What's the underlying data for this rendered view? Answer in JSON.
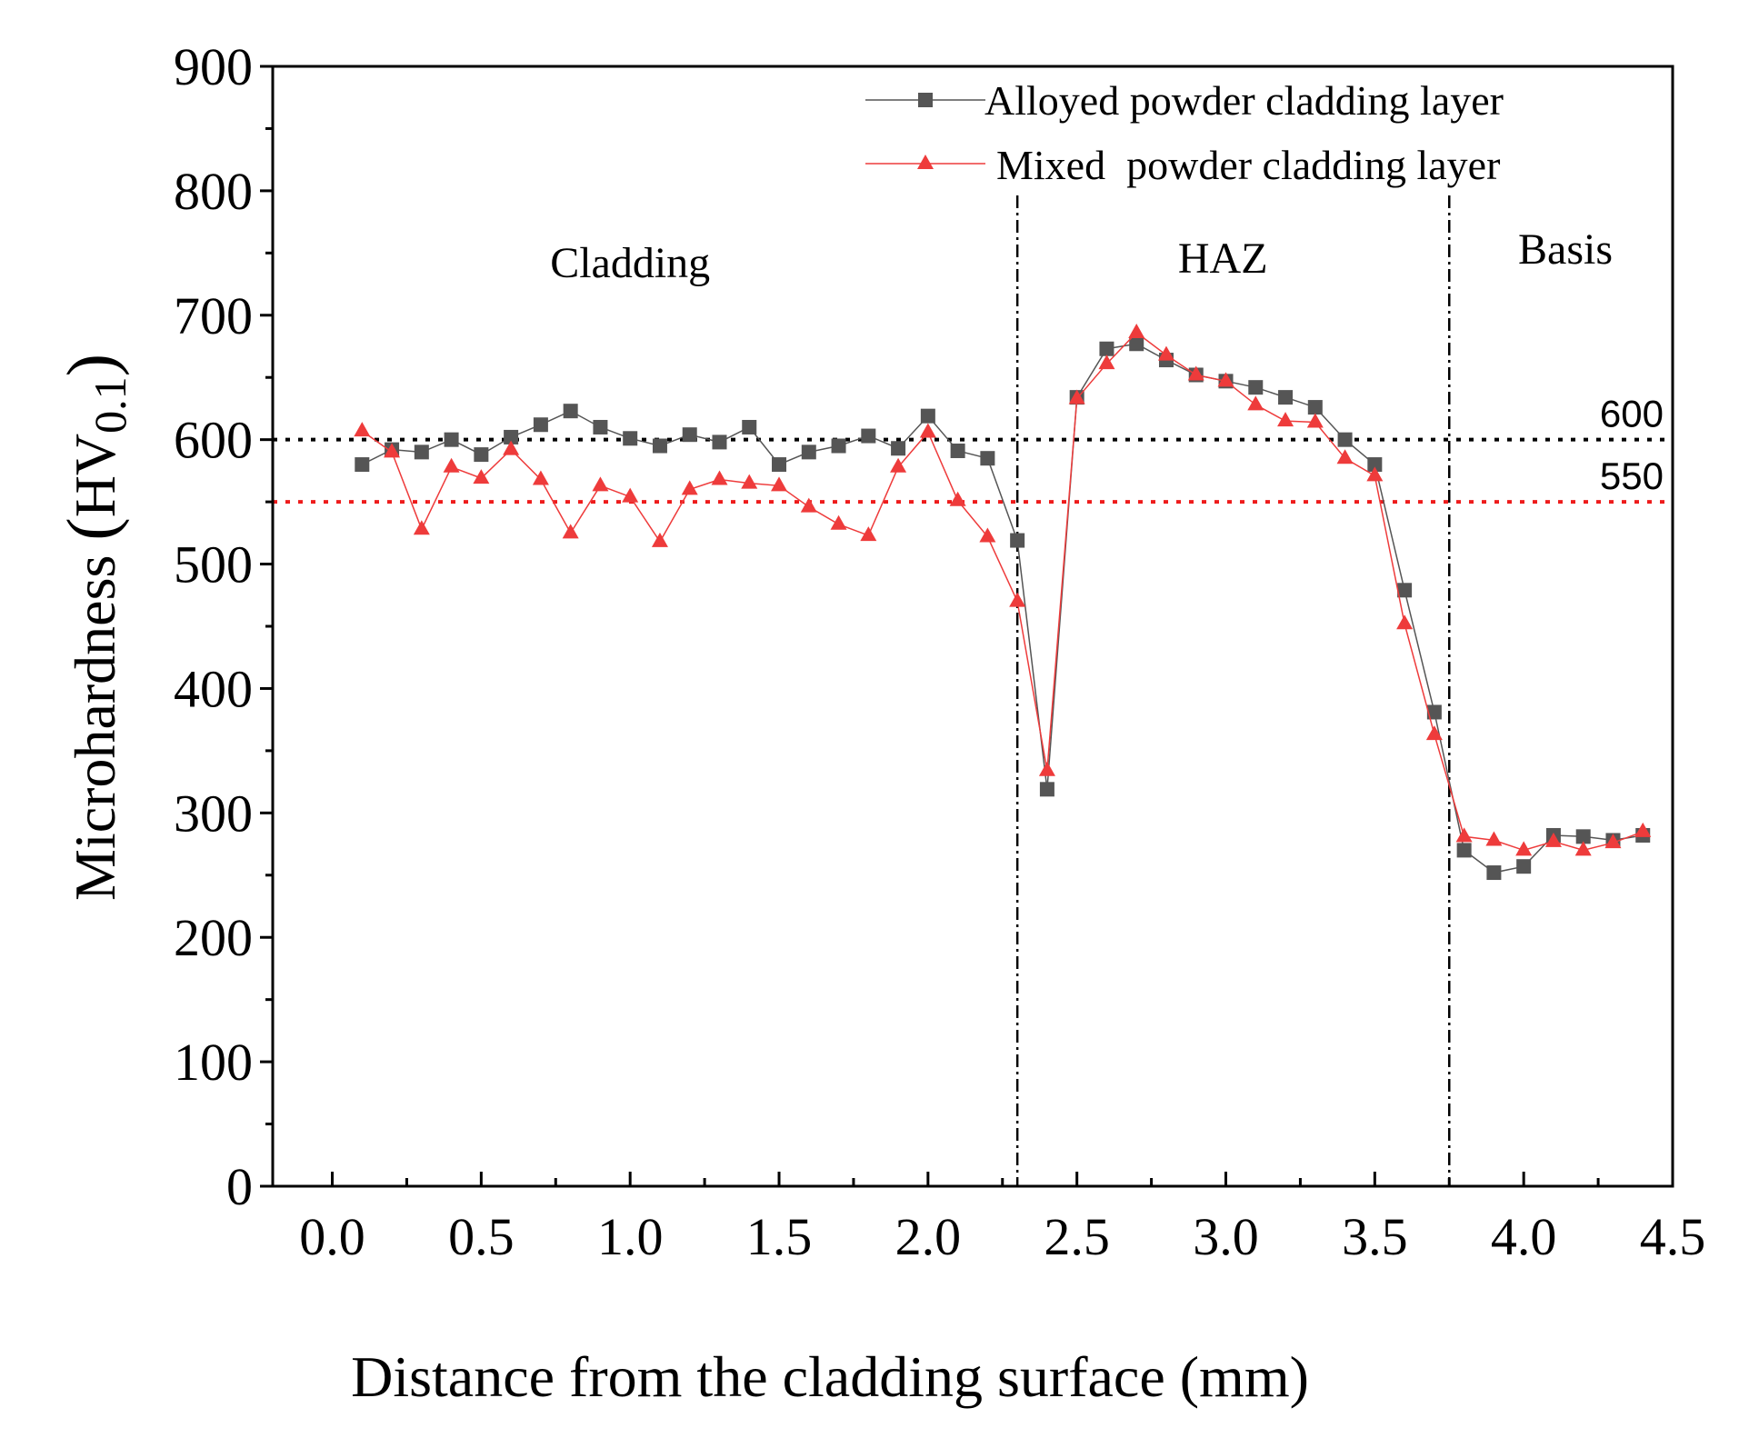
{
  "chart_data": {
    "type": "line",
    "xlabel": "Distance from the cladding surface (mm)",
    "ylabel": "Microhardness (HV0.1)",
    "ylabel_main": "Microhardness",
    "ylabel_paren_open": "(",
    "ylabel_hv": "HV",
    "ylabel_sub": "0.1",
    "ylabel_paren_close": ")",
    "xlim": [
      -0.2,
      4.5
    ],
    "ylim": [
      0,
      900
    ],
    "xticks": [
      0.0,
      0.5,
      1.0,
      1.5,
      2.0,
      2.5,
      3.0,
      3.5,
      4.0,
      4.5
    ],
    "xtick_labels": [
      "0.0",
      "0.5",
      "1.0",
      "1.5",
      "2.0",
      "2.5",
      "3.0",
      "3.5",
      "4.0",
      "4.5"
    ],
    "yticks": [
      0,
      100,
      200,
      300,
      400,
      500,
      600,
      700,
      800,
      900
    ],
    "ytick_labels": [
      "0",
      "100",
      "200",
      "300",
      "400",
      "500",
      "600",
      "700",
      "800",
      "900"
    ],
    "series": [
      {
        "name": "Alloyed powder cladding layer",
        "color": "#555555",
        "marker": "square",
        "x": [
          0.1,
          0.2,
          0.3,
          0.4,
          0.5,
          0.6,
          0.7,
          0.8,
          0.9,
          1.0,
          1.1,
          1.2,
          1.3,
          1.4,
          1.5,
          1.6,
          1.7,
          1.8,
          1.9,
          2.0,
          2.1,
          2.2,
          2.3,
          2.4,
          2.5,
          2.6,
          2.7,
          2.8,
          2.9,
          3.0,
          3.1,
          3.2,
          3.3,
          3.4,
          3.5,
          3.6,
          3.7,
          3.8,
          3.9,
          4.0,
          4.1,
          4.2,
          4.3,
          4.4
        ],
        "y": [
          580,
          592,
          590,
          600,
          588,
          602,
          612,
          623,
          610,
          601,
          595,
          604,
          598,
          610,
          580,
          590,
          595,
          603,
          593,
          619,
          591,
          585,
          519,
          319,
          634,
          673,
          677,
          664,
          652,
          647,
          642,
          634,
          626,
          600,
          580,
          479,
          381,
          270,
          252,
          257,
          282,
          281,
          278,
          282
        ]
      },
      {
        "name": "Mixed  powder cladding layer",
        "color": "#ee3b3b",
        "marker": "triangle",
        "x": [
          0.1,
          0.2,
          0.3,
          0.4,
          0.5,
          0.6,
          0.7,
          0.8,
          0.9,
          1.0,
          1.1,
          1.2,
          1.3,
          1.4,
          1.5,
          1.6,
          1.7,
          1.8,
          1.9,
          2.0,
          2.1,
          2.2,
          2.3,
          2.4,
          2.5,
          2.6,
          2.7,
          2.8,
          2.9,
          3.0,
          3.1,
          3.2,
          3.3,
          3.4,
          3.5,
          3.6,
          3.7,
          3.8,
          3.9,
          4.0,
          4.1,
          4.2,
          4.3,
          4.4
        ],
        "y": [
          607,
          590,
          528,
          578,
          569,
          592,
          568,
          525,
          563,
          554,
          518,
          560,
          568,
          565,
          563,
          546,
          532,
          523,
          578,
          606,
          551,
          522,
          470,
          334,
          633,
          661,
          686,
          668,
          652,
          647,
          628,
          615,
          614,
          585,
          571,
          452,
          363,
          281,
          278,
          270,
          277,
          270,
          276,
          285
        ]
      }
    ],
    "reference_lines": [
      {
        "value": 600,
        "label": "600",
        "color": "#000000",
        "style": "dotted"
      },
      {
        "value": 550,
        "label": "550",
        "color": "#ee1c1c",
        "style": "dotted"
      }
    ],
    "region_boundaries": [
      2.3,
      3.75
    ],
    "regions": [
      {
        "label": "Cladding",
        "center_x": 1.0
      },
      {
        "label": "HAZ",
        "center_x": 2.99
      },
      {
        "label": "Basis",
        "center_x": 4.14
      }
    ],
    "legend_position": "top-right",
    "grid": false
  }
}
